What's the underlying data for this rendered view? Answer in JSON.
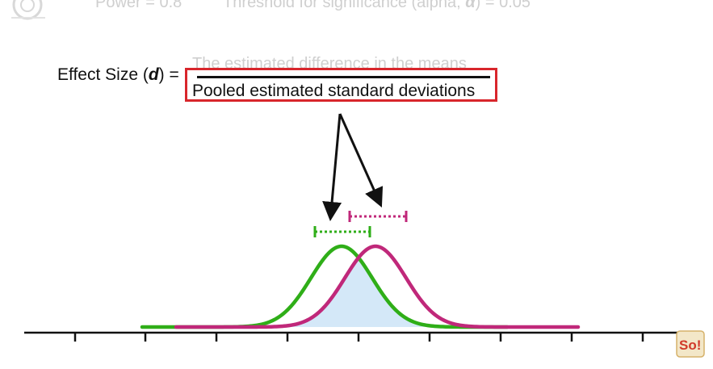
{
  "header": {
    "power_text": "Power = 0.8",
    "threshold_text": "Threshold for significance (alpha, α) = 0.05"
  },
  "formula": {
    "label": "Effect Size (d) =",
    "numerator": "The estimated difference in the means",
    "denominator": "Pooled estimated standard deviations"
  },
  "colors": {
    "green": "#2fae18",
    "magenta": "#c0287a",
    "overlap_fill": "#d4e8f8",
    "highlight_box": "#d8262c",
    "axis": "#111111"
  },
  "logo_text": "So!"
}
